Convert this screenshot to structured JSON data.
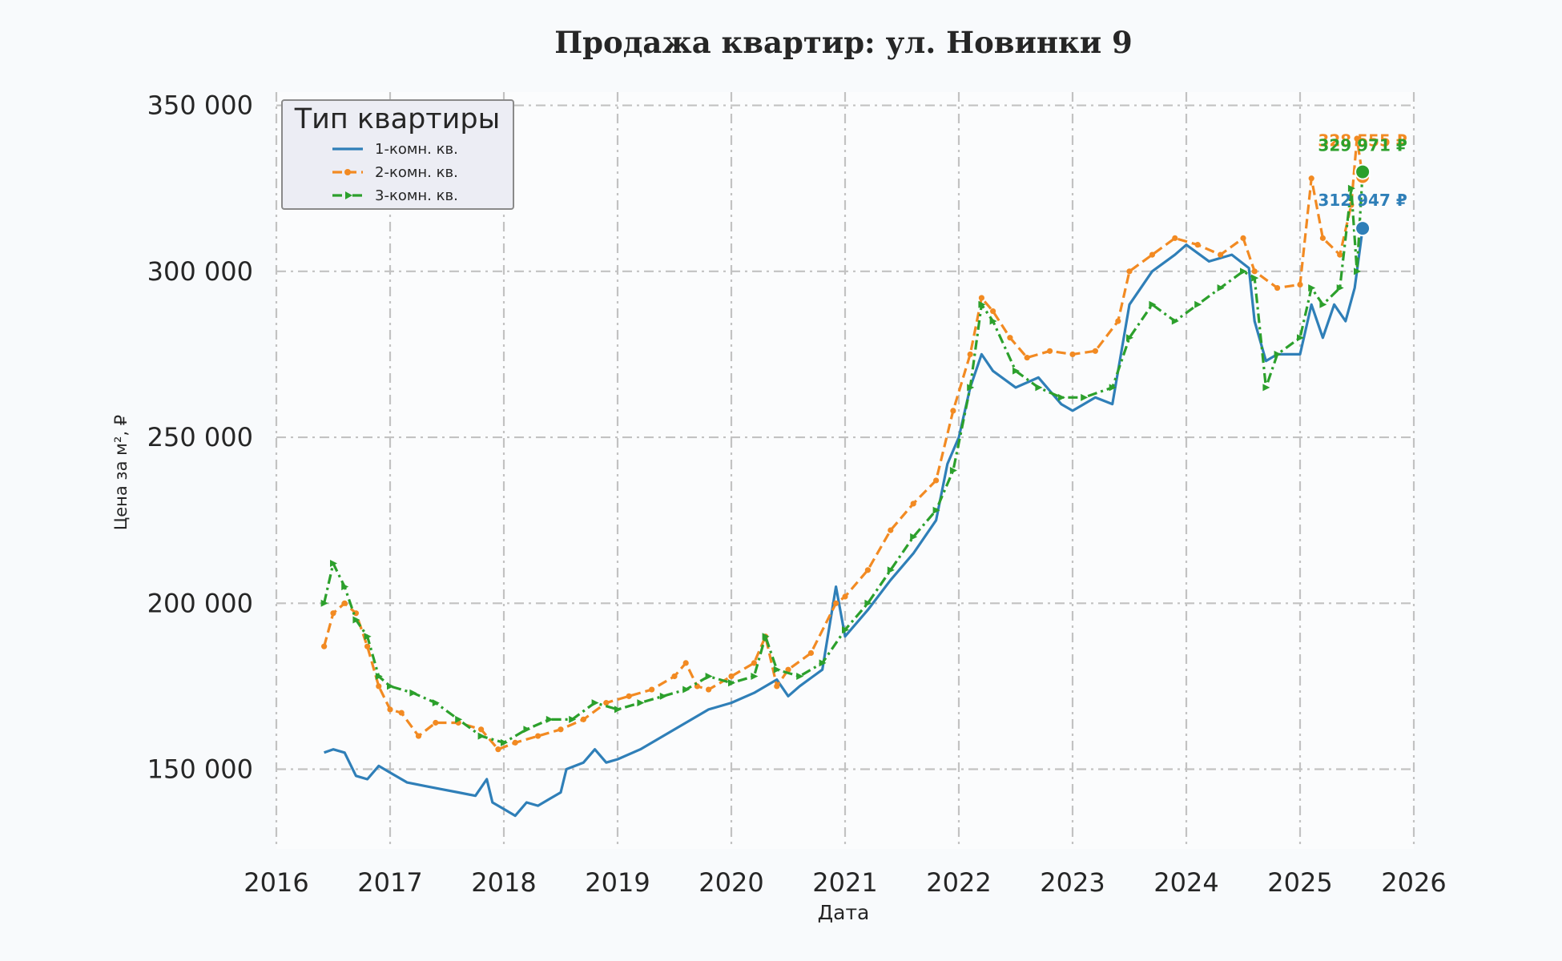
{
  "chart_data": {
    "type": "line",
    "title": "Продажа квартир: ул. Новинки 9",
    "xlabel": "Дата",
    "ylabel": "Цена за м², ₽",
    "xlim": [
      2016.0,
      2026.0
    ],
    "ylim": [
      126000,
      354000
    ],
    "x_ticks": [
      2016,
      2017,
      2018,
      2019,
      2020,
      2021,
      2022,
      2023,
      2024,
      2025,
      2026
    ],
    "x_tick_labels": [
      "2016",
      "2017",
      "2018",
      "2019",
      "2020",
      "2021",
      "2022",
      "2023",
      "2024",
      "2025",
      "2026"
    ],
    "y_ticks": [
      150000,
      200000,
      250000,
      300000,
      350000
    ],
    "y_tick_labels": [
      "150 000",
      "200 000",
      "250 000",
      "300 000",
      "350 000"
    ],
    "grid": true,
    "legend": {
      "title": "Тип квартиры",
      "placement": "top-left"
    },
    "series": [
      {
        "name": "1-комн. кв.",
        "color": "#2f7fb8",
        "marker": "none",
        "line_style": "solid",
        "end_label": "312 947 ₽",
        "end_value": 312947,
        "x": [
          2016.42,
          2016.5,
          2016.6,
          2016.7,
          2016.8,
          2016.9,
          2017.0,
          2017.15,
          2017.3,
          2017.45,
          2017.6,
          2017.75,
          2017.85,
          2017.9,
          2018.0,
          2018.1,
          2018.2,
          2018.3,
          2018.4,
          2018.5,
          2018.55,
          2018.7,
          2018.8,
          2018.9,
          2019.0,
          2019.2,
          2019.4,
          2019.6,
          2019.8,
          2020.0,
          2020.2,
          2020.4,
          2020.5,
          2020.6,
          2020.8,
          2020.92,
          2021.0,
          2021.2,
          2021.4,
          2021.6,
          2021.8,
          2021.9,
          2022.0,
          2022.1,
          2022.2,
          2022.3,
          2022.5,
          2022.7,
          2022.9,
          2023.0,
          2023.2,
          2023.35,
          2023.5,
          2023.7,
          2023.9,
          2024.0,
          2024.2,
          2024.4,
          2024.55,
          2024.6,
          2024.7,
          2024.8,
          2025.0,
          2025.1,
          2025.2,
          2025.3,
          2025.4,
          2025.48,
          2025.5,
          2025.55
        ],
        "y": [
          155000,
          156000,
          155000,
          148000,
          147000,
          151000,
          149000,
          146000,
          145000,
          144000,
          143000,
          142000,
          147000,
          140000,
          138000,
          136000,
          140000,
          139000,
          141000,
          143000,
          150000,
          152000,
          156000,
          152000,
          153000,
          156000,
          160000,
          164000,
          168000,
          170000,
          173000,
          177000,
          172000,
          175000,
          180000,
          205000,
          190000,
          198000,
          207000,
          215000,
          225000,
          242000,
          250000,
          265000,
          275000,
          270000,
          265000,
          268000,
          260000,
          258000,
          262000,
          260000,
          290000,
          300000,
          305000,
          308000,
          303000,
          305000,
          301000,
          285000,
          273000,
          275000,
          275000,
          290000,
          280000,
          290000,
          285000,
          295000,
          300000,
          312947
        ]
      },
      {
        "name": "2-комн. кв.",
        "color": "#f28a22",
        "marker": "dot",
        "line_style": "dashed",
        "end_label": "328 555 ₽",
        "end_value": 328555,
        "x": [
          2016.42,
          2016.5,
          2016.6,
          2016.7,
          2016.8,
          2016.9,
          2017.0,
          2017.1,
          2017.25,
          2017.4,
          2017.6,
          2017.8,
          2017.95,
          2018.1,
          2018.3,
          2018.5,
          2018.7,
          2018.9,
          2019.1,
          2019.3,
          2019.5,
          2019.6,
          2019.7,
          2019.8,
          2020.0,
          2020.2,
          2020.3,
          2020.4,
          2020.5,
          2020.7,
          2020.92,
          2021.0,
          2021.2,
          2021.4,
          2021.6,
          2021.8,
          2021.95,
          2022.1,
          2022.2,
          2022.3,
          2022.45,
          2022.6,
          2022.8,
          2023.0,
          2023.2,
          2023.4,
          2023.5,
          2023.7,
          2023.9,
          2024.1,
          2024.3,
          2024.5,
          2024.6,
          2024.8,
          2025.0,
          2025.1,
          2025.2,
          2025.35,
          2025.45,
          2025.5,
          2025.55
        ],
        "y": [
          187000,
          197000,
          200000,
          197000,
          187000,
          175000,
          168000,
          167000,
          160000,
          164000,
          164000,
          162000,
          156000,
          158000,
          160000,
          162000,
          165000,
          170000,
          172000,
          174000,
          178000,
          182000,
          175000,
          174000,
          178000,
          182000,
          190000,
          175000,
          180000,
          185000,
          200000,
          202000,
          210000,
          222000,
          230000,
          237000,
          258000,
          275000,
          292000,
          288000,
          280000,
          274000,
          276000,
          275000,
          276000,
          285000,
          300000,
          305000,
          310000,
          308000,
          305000,
          310000,
          300000,
          295000,
          296000,
          328000,
          310000,
          305000,
          320000,
          340000,
          328555
        ]
      },
      {
        "name": "3-комн. кв.",
        "color": "#2ca02c",
        "marker": "triangle",
        "line_style": "dashdot",
        "end_label": "329 971 ₽",
        "end_value": 329971,
        "x": [
          2016.42,
          2016.5,
          2016.6,
          2016.7,
          2016.8,
          2016.9,
          2017.0,
          2017.2,
          2017.4,
          2017.6,
          2017.8,
          2018.0,
          2018.2,
          2018.4,
          2018.6,
          2018.8,
          2019.0,
          2019.2,
          2019.4,
          2019.6,
          2019.8,
          2020.0,
          2020.2,
          2020.3,
          2020.4,
          2020.6,
          2020.8,
          2021.0,
          2021.2,
          2021.4,
          2021.6,
          2021.8,
          2021.95,
          2022.1,
          2022.2,
          2022.3,
          2022.5,
          2022.7,
          2022.9,
          2023.1,
          2023.35,
          2023.5,
          2023.7,
          2023.9,
          2024.1,
          2024.3,
          2024.5,
          2024.6,
          2024.7,
          2024.8,
          2025.0,
          2025.1,
          2025.2,
          2025.35,
          2025.45,
          2025.5,
          2025.55
        ],
        "y": [
          200000,
          212000,
          205000,
          195000,
          190000,
          178000,
          175000,
          173000,
          170000,
          165000,
          160000,
          158000,
          162000,
          165000,
          165000,
          170000,
          168000,
          170000,
          172000,
          174000,
          178000,
          176000,
          178000,
          190000,
          180000,
          178000,
          182000,
          192000,
          200000,
          210000,
          220000,
          228000,
          240000,
          265000,
          290000,
          285000,
          270000,
          265000,
          262000,
          262000,
          265000,
          280000,
          290000,
          285000,
          290000,
          295000,
          300000,
          298000,
          265000,
          275000,
          280000,
          295000,
          290000,
          295000,
          325000,
          300000,
          329971
        ]
      }
    ]
  }
}
